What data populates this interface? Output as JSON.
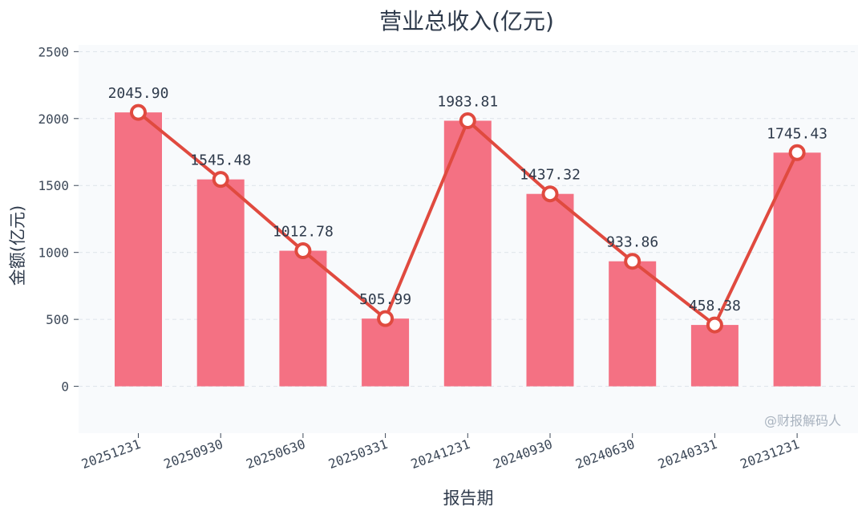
{
  "chart_data": {
    "type": "bar",
    "title": "营业总收入(亿元)",
    "xlabel": "报告期",
    "ylabel": "金额(亿元)",
    "categories": [
      "20251231",
      "20250930",
      "20250630",
      "20250331",
      "20241231",
      "20240930",
      "20240630",
      "20240331",
      "20231231"
    ],
    "series": [
      {
        "type": "bar",
        "values": [
          2045.9,
          1545.48,
          1012.78,
          505.99,
          1983.81,
          1437.32,
          933.86,
          458.38,
          1745.43
        ]
      },
      {
        "type": "line",
        "values": [
          2045.9,
          1545.48,
          1012.78,
          505.99,
          1983.81,
          1437.32,
          933.86,
          458.38,
          1745.43
        ]
      }
    ],
    "data_labels": [
      "2045.90",
      "1545.48",
      "1012.78",
      "505.99",
      "1983.81",
      "1437.32",
      "933.86",
      "458.38",
      "1745.43"
    ],
    "yticks": [
      "0",
      "500",
      "1000",
      "1500",
      "2000",
      "2500"
    ],
    "ylim": [
      -350,
      2550
    ],
    "grid": true,
    "colors": {
      "bar": "#f47183",
      "line": "#e04a3f",
      "plot_bg": "#f8fafc",
      "grid": "#dde3ea"
    },
    "watermark": "@财报解码人"
  }
}
